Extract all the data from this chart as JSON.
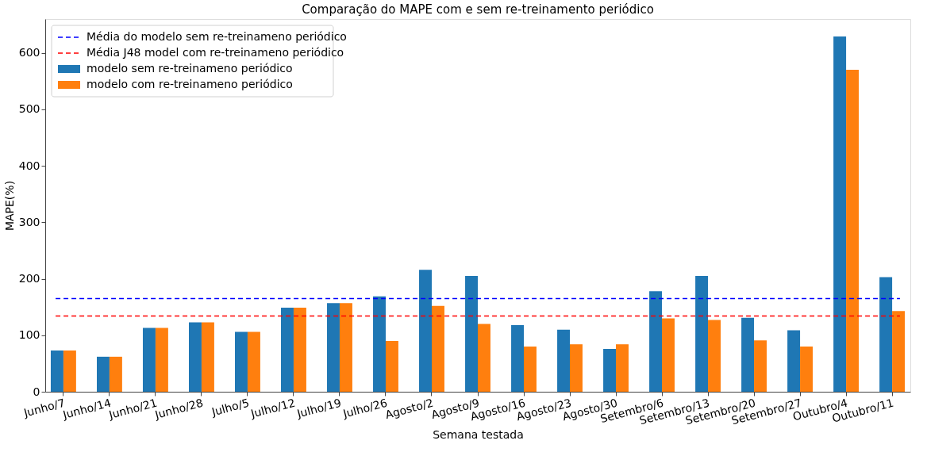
{
  "chart_data": {
    "type": "bar",
    "title": "Comparação do MAPE com e sem re-treinamento periódico",
    "xlabel": "Semana testada",
    "ylabel": "MAPE(%)",
    "categories": [
      "Junho/7",
      "Junho/14",
      "Junho/21",
      "Junho/28",
      "Julho/5",
      "Julho/12",
      "Julho/19",
      "Julho/26",
      "Agosto/2",
      "Agosto/9",
      "Agosto/16",
      "Agosto/23",
      "Agosto/30",
      "Setembro/6",
      "Setembro/13",
      "Setembro/20",
      "Setembro/27",
      "Outubro/4",
      "Outubro/11"
    ],
    "series": [
      {
        "name": "modelo sem re-treinameno periódico",
        "color": "#1f77b4",
        "values": [
          73,
          62,
          113,
          123,
          106,
          149,
          157,
          169,
          216,
          205,
          118,
          110,
          76,
          178,
          205,
          131,
          109,
          629,
          203
        ]
      },
      {
        "name": "modelo com re-treinameno periódico",
        "color": "#ff7f0e",
        "values": [
          73,
          62,
          113,
          123,
          106,
          149,
          157,
          90,
          152,
          120,
          80,
          84,
          84,
          130,
          127,
          91,
          80,
          570,
          143
        ]
      }
    ],
    "ref_lines": [
      {
        "axis": "y",
        "value": 165,
        "label": "Média do modelo sem re-treinameno periódico",
        "color": "#0000ff",
        "line_style": "dashed"
      },
      {
        "axis": "y",
        "value": 134,
        "label": "Média J48 model com re-treinameno periódico",
        "color": "#ff0000",
        "line_style": "dashed"
      }
    ],
    "ylim": [
      0,
      660
    ],
    "yticks": [
      0,
      100,
      200,
      300,
      400,
      500,
      600
    ],
    "grid": false,
    "legend": "top left"
  }
}
